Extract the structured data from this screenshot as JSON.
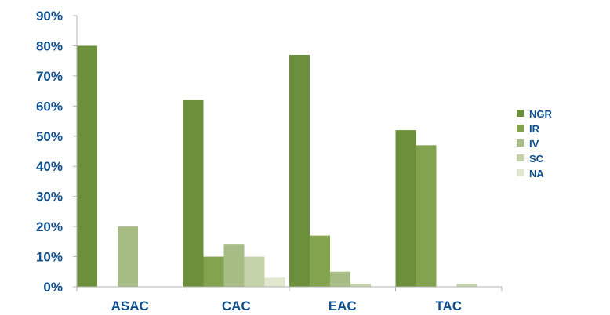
{
  "chart_data": {
    "type": "bar",
    "title": "",
    "xlabel": "",
    "ylabel": "",
    "ylim": [
      0,
      90
    ],
    "y_tick_values": [
      0,
      10,
      20,
      30,
      40,
      50,
      60,
      70,
      80,
      90
    ],
    "y_tick_labels": [
      "0%",
      "10%",
      "20%",
      "30%",
      "40%",
      "50%",
      "60%",
      "70%",
      "80%",
      "90%"
    ],
    "categories": [
      "ASAC",
      "CAC",
      "EAC",
      "TAC"
    ],
    "series": [
      {
        "name": "NGR",
        "color": "#6b8f3a",
        "values": [
          80,
          62,
          77,
          52
        ]
      },
      {
        "name": "IR",
        "color": "#83a34e",
        "values": [
          0,
          10,
          17,
          47
        ]
      },
      {
        "name": "IV",
        "color": "#a7bb84",
        "values": [
          20,
          14,
          5,
          0
        ]
      },
      {
        "name": "SC",
        "color": "#c5d3aa",
        "values": [
          0,
          10,
          1,
          1
        ]
      },
      {
        "name": "NA",
        "color": "#dfe7cf",
        "values": [
          0,
          3,
          0,
          0
        ]
      }
    ],
    "grid": false,
    "legend_position": "right"
  }
}
